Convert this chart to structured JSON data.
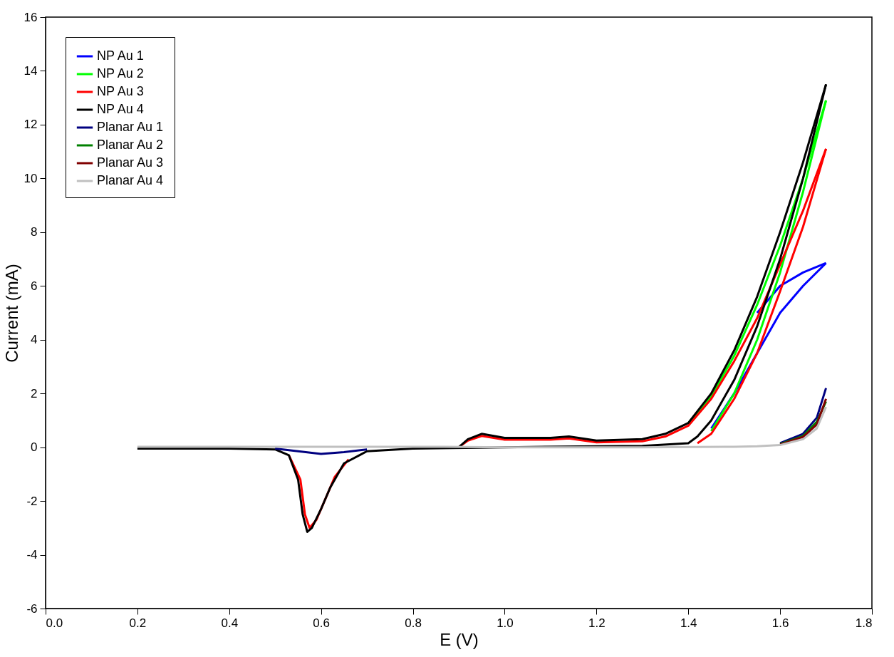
{
  "chart_data": {
    "type": "line",
    "xlabel": "E (V)",
    "ylabel": "Current (mA)",
    "xlim": [
      0.0,
      1.8
    ],
    "xticks": [
      {
        "value": 0,
        "label": "0.0"
      },
      0.2,
      0.4,
      0.6,
      0.8,
      {
        "value": 1,
        "label": "1.0"
      },
      1.2,
      1.4,
      1.6,
      1.8
    ],
    "ylim": [
      -6,
      16
    ],
    "yticks": [
      -6,
      -4,
      -2,
      0,
      2,
      4,
      6,
      8,
      10,
      12,
      14,
      16
    ],
    "grid": false,
    "legend": "top left",
    "line_style": "solid",
    "marker": "none",
    "series": [
      {
        "name": "NP Au 1",
        "color": "#0000ff",
        "x": [
          1.55,
          1.6,
          1.65,
          1.7
        ],
        "values": [
          5.0,
          6.0,
          6.5,
          6.85
        ]
      },
      {
        "color": "#0000ff",
        "x": [
          1.45,
          1.5,
          1.55,
          1.6,
          1.65,
          1.7
        ],
        "values": [
          0.7,
          2.0,
          3.5,
          5.0,
          6.0,
          6.85
        ]
      },
      {
        "name": "NP Au 2",
        "color": "#00ff00",
        "x": [
          1.4,
          1.45,
          1.5,
          1.55,
          1.6,
          1.65,
          1.7
        ],
        "values": [
          0.9,
          1.9,
          3.4,
          5.3,
          7.5,
          10.0,
          12.9
        ]
      },
      {
        "color": "#00ff00",
        "x": [
          1.45,
          1.5,
          1.55,
          1.6,
          1.65,
          1.7
        ],
        "values": [
          0.6,
          2.0,
          4.0,
          6.5,
          9.5,
          12.9
        ]
      },
      {
        "name": "NP Au 3",
        "color": "#ff0000",
        "x": [
          0.9,
          0.92,
          0.95,
          1.0,
          1.1,
          1.14,
          1.2,
          1.3,
          1.35,
          1.4,
          1.45,
          1.5,
          1.55,
          1.6,
          1.65,
          1.7
        ],
        "values": [
          0,
          0.25,
          0.42,
          0.28,
          0.28,
          0.33,
          0.18,
          0.22,
          0.4,
          0.8,
          1.8,
          3.2,
          4.8,
          6.8,
          8.8,
          11.1
        ]
      },
      {
        "color": "#ff0000",
        "x": [
          0.53,
          0.555,
          0.565,
          0.575,
          0.59,
          0.61,
          0.63,
          0.66
        ],
        "values": [
          -0.3,
          -1.2,
          -2.5,
          -3.0,
          -2.7,
          -1.9,
          -1.1,
          -0.45
        ]
      },
      {
        "color": "#ff0000",
        "x": [
          1.42,
          1.45,
          1.5,
          1.55,
          1.6,
          1.65,
          1.7
        ],
        "values": [
          0.15,
          0.5,
          1.8,
          3.5,
          5.8,
          8.2,
          11.1
        ]
      },
      {
        "name": "NP Au 4",
        "color": "#000000",
        "x": [
          0.9,
          0.92,
          0.95,
          1.0,
          1.1,
          1.14,
          1.2,
          1.3,
          1.35,
          1.4,
          1.45,
          1.5,
          1.55,
          1.6,
          1.65,
          1.7
        ],
        "values": [
          0,
          0.3,
          0.5,
          0.35,
          0.35,
          0.4,
          0.25,
          0.3,
          0.5,
          0.9,
          2.0,
          3.6,
          5.6,
          8.0,
          10.6,
          13.5
        ]
      },
      {
        "color": "#000000",
        "x": [
          0.2,
          0.4,
          0.5,
          0.53,
          0.55,
          0.56,
          0.57,
          0.58,
          0.6,
          0.62,
          0.65,
          0.7,
          0.8,
          1.0,
          1.3,
          1.4,
          1.42,
          1.45,
          1.5,
          1.55,
          1.6,
          1.65,
          1.7
        ],
        "values": [
          -0.05,
          -0.05,
          -0.08,
          -0.3,
          -1.2,
          -2.5,
          -3.15,
          -3.0,
          -2.3,
          -1.5,
          -0.6,
          -0.15,
          -0.05,
          0,
          0.05,
          0.15,
          0.4,
          1.0,
          2.5,
          4.5,
          7.0,
          10.0,
          13.5
        ]
      },
      {
        "name": "Planar Au 1",
        "color": "#000080",
        "x": [
          1.6,
          1.65,
          1.68,
          1.7
        ],
        "values": [
          0.15,
          0.5,
          1.1,
          2.2
        ]
      },
      {
        "color": "#000080",
        "x": [
          0.5,
          0.55,
          0.6,
          0.65,
          0.7
        ],
        "values": [
          -0.05,
          -0.15,
          -0.25,
          -0.18,
          -0.08
        ]
      },
      {
        "name": "Planar Au 2",
        "color": "#008000",
        "x": [
          1.6,
          1.65,
          1.68,
          1.7
        ],
        "values": [
          0.12,
          0.42,
          0.95,
          1.7
        ]
      },
      {
        "name": "Planar Au 3",
        "color": "#800000",
        "x": [
          1.6,
          1.65,
          1.68,
          1.7
        ],
        "values": [
          0.1,
          0.38,
          0.85,
          1.8
        ]
      },
      {
        "name": "Planar Au 4",
        "color": "#c0c0c0",
        "x": [
          0.2,
          0.5,
          0.87,
          1.0,
          1.3,
          1.5,
          1.55,
          1.6,
          1.65,
          1.68,
          1.7
        ],
        "values": [
          0.02,
          0.02,
          0.02,
          0,
          0,
          0.02,
          0.04,
          0.08,
          0.3,
          0.7,
          1.5
        ]
      }
    ]
  }
}
